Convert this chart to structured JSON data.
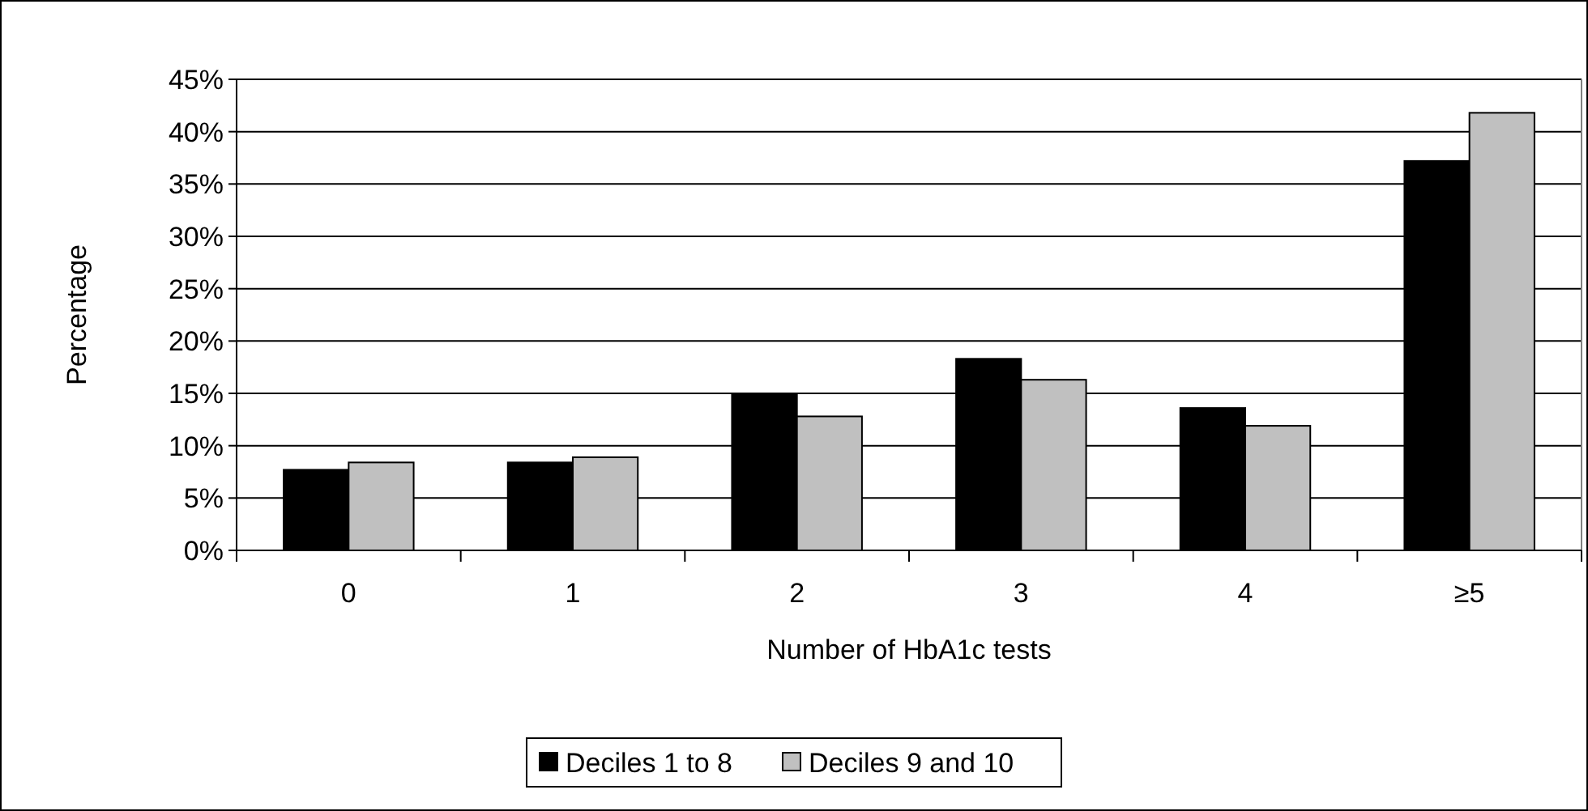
{
  "chart_data": {
    "type": "bar",
    "xlabel": "Number of HbA1c tests",
    "ylabel": "Percentage",
    "categories": [
      "0",
      "1",
      "2",
      "3",
      "4",
      "≥5"
    ],
    "series": [
      {
        "name": "Deciles 1 to 8",
        "color": "#000000",
        "values": [
          7.7,
          8.4,
          14.9,
          18.3,
          13.6,
          37.2
        ]
      },
      {
        "name": "Deciles 9 and 10",
        "color": "#c0c0c0",
        "values": [
          8.4,
          8.9,
          12.8,
          16.3,
          11.9,
          41.8
        ]
      }
    ],
    "ylim": [
      0,
      45
    ],
    "yticks": [
      {
        "value": 0,
        "label": "0%"
      },
      {
        "value": 5,
        "label": "5%"
      },
      {
        "value": 10,
        "label": "10%"
      },
      {
        "value": 15,
        "label": "15%"
      },
      {
        "value": 20,
        "label": "20%"
      },
      {
        "value": 25,
        "label": "25%"
      },
      {
        "value": 30,
        "label": "30%"
      },
      {
        "value": 35,
        "label": "35%"
      },
      {
        "value": 40,
        "label": "40%"
      },
      {
        "value": 45,
        "label": "45%"
      }
    ],
    "grid": "y",
    "legend": "bottom"
  }
}
